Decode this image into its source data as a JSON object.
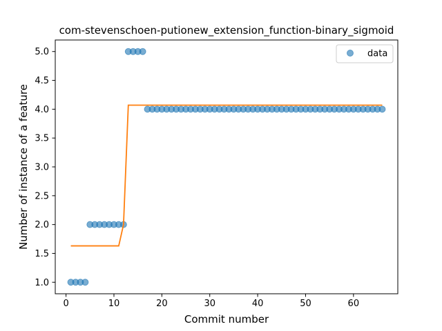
{
  "chart_data": {
    "type": "scatter",
    "title": "com-stevenschoen-putionew_extension_function-binary_sigmoid",
    "xlabel": "Commit number",
    "ylabel": "Number of instance of a feature",
    "xlim": [
      -2.25,
      69.25
    ],
    "ylim": [
      0.8,
      5.2
    ],
    "xticks": [
      0,
      10,
      20,
      30,
      40,
      50,
      60
    ],
    "xtick_labels": [
      "0",
      "10",
      "20",
      "30",
      "40",
      "50",
      "60"
    ],
    "yticks": [
      1.0,
      1.5,
      2.0,
      2.5,
      3.0,
      3.5,
      4.0,
      4.5,
      5.0
    ],
    "ytick_labels": [
      "1.0",
      "1.5",
      "2.0",
      "2.5",
      "3.0",
      "3.5",
      "4.0",
      "4.5",
      "5.0"
    ],
    "grid": false,
    "legend_position": "top-right",
    "series": [
      {
        "name": "data",
        "kind": "scatter",
        "color": "#1f77b4",
        "x": [
          1,
          2,
          3,
          4,
          5,
          6,
          7,
          8,
          9,
          10,
          11,
          12,
          13,
          14,
          15,
          16,
          17,
          18,
          19,
          20,
          21,
          22,
          23,
          24,
          25,
          26,
          27,
          28,
          29,
          30,
          31,
          32,
          33,
          34,
          35,
          36,
          37,
          38,
          39,
          40,
          41,
          42,
          43,
          44,
          45,
          46,
          47,
          48,
          49,
          50,
          51,
          52,
          53,
          54,
          55,
          56,
          57,
          58,
          59,
          60,
          61,
          62,
          63,
          64,
          65,
          66
        ],
        "y": [
          1,
          1,
          1,
          1,
          2,
          2,
          2,
          2,
          2,
          2,
          2,
          2,
          5,
          5,
          5,
          5,
          4,
          4,
          4,
          4,
          4,
          4,
          4,
          4,
          4,
          4,
          4,
          4,
          4,
          4,
          4,
          4,
          4,
          4,
          4,
          4,
          4,
          4,
          4,
          4,
          4,
          4,
          4,
          4,
          4,
          4,
          4,
          4,
          4,
          4,
          4,
          4,
          4,
          4,
          4,
          4,
          4,
          4,
          4,
          4,
          4,
          4,
          4,
          4,
          4,
          4
        ]
      },
      {
        "kind": "line",
        "color": "#ff7f0e",
        "x": [
          1,
          11,
          12,
          13,
          66
        ],
        "y": [
          1.63,
          1.63,
          2.0,
          4.07,
          4.07
        ]
      }
    ]
  }
}
